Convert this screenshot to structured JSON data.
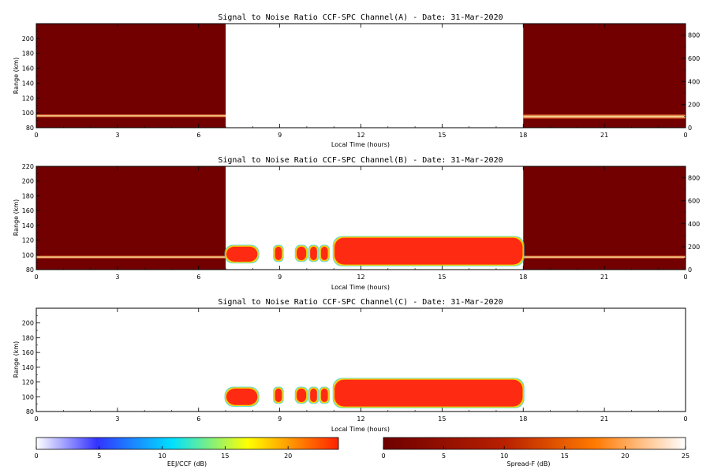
{
  "chart_data": [
    {
      "type": "heatmap",
      "title": "Signal to Noise Ratio CCF-SPC Channel(A) - Date: 31-Mar-2020",
      "xlabel": "Local Time (hours)",
      "ylabel": "Range (km)",
      "xlim": [
        0,
        24
      ],
      "ylim": [
        80,
        220
      ],
      "x_ticks": [
        "0",
        "3",
        "6",
        "9",
        "12",
        "15",
        "18",
        "21",
        "0"
      ],
      "y_ticks": [
        "80",
        "100",
        "120",
        "140",
        "160",
        "180",
        "200"
      ],
      "right_axis": {
        "ylim": [
          0,
          900
        ],
        "ticks": [
          "0",
          "200",
          "400",
          "600",
          "800"
        ]
      },
      "night_blocks": [
        {
          "x": [
            0,
            7
          ]
        },
        {
          "x": [
            18,
            24
          ]
        }
      ],
      "layers": [
        {
          "x": [
            0,
            7
          ],
          "range_km": [
            94,
            98
          ],
          "level": "bright"
        },
        {
          "x": [
            18,
            24
          ],
          "range_km": [
            92,
            98
          ],
          "level": "bright"
        }
      ],
      "echo_blocks": []
    },
    {
      "type": "heatmap",
      "title": "Signal to Noise Ratio CCF-SPC Channel(B) - Date: 31-Mar-2020",
      "xlabel": "Local Time (hours)",
      "ylabel": "Range (km)",
      "xlim": [
        0,
        24
      ],
      "ylim": [
        80,
        220
      ],
      "x_ticks": [
        "0",
        "3",
        "6",
        "9",
        "12",
        "15",
        "18",
        "21",
        "0"
      ],
      "y_ticks": [
        "80",
        "100",
        "120",
        "140",
        "160",
        "180",
        "200",
        "220"
      ],
      "right_axis": {
        "ylim": [
          0,
          900
        ],
        "ticks": [
          "0",
          "200",
          "400",
          "600",
          "800"
        ]
      },
      "night_blocks": [
        {
          "x": [
            0,
            7
          ]
        },
        {
          "x": [
            18,
            24
          ]
        }
      ],
      "layers": [
        {
          "x": [
            0,
            7
          ],
          "range_km": [
            95,
            99
          ],
          "level": "bright"
        },
        {
          "x": [
            18,
            24
          ],
          "range_km": [
            95,
            99
          ],
          "level": "bright"
        }
      ],
      "echo_blocks": [
        {
          "x": [
            7.0,
            8.2
          ],
          "range_km": [
            90,
            112
          ]
        },
        {
          "x": [
            8.8,
            9.1
          ],
          "range_km": [
            92,
            112
          ]
        },
        {
          "x": [
            9.6,
            10.0
          ],
          "range_km": [
            92,
            112
          ]
        },
        {
          "x": [
            10.1,
            10.4
          ],
          "range_km": [
            92,
            112
          ]
        },
        {
          "x": [
            10.5,
            10.8
          ],
          "range_km": [
            92,
            112
          ]
        },
        {
          "x": [
            11.0,
            18.0
          ],
          "range_km": [
            86,
            124
          ]
        }
      ]
    },
    {
      "type": "heatmap",
      "title": "Signal to Noise Ratio CCF-SPC Channel(C) - Date: 31-Mar-2020",
      "xlabel": "Local Time (hours)",
      "ylabel": "Range (km)",
      "xlim": [
        0,
        24
      ],
      "ylim": [
        80,
        220
      ],
      "x_ticks": [
        "0",
        "3",
        "6",
        "9",
        "12",
        "15",
        "18",
        "21",
        "0"
      ],
      "y_ticks": [
        "80",
        "100",
        "120",
        "140",
        "160",
        "180",
        "200"
      ],
      "night_blocks": [],
      "layers": [],
      "echo_blocks": [
        {
          "x": [
            7.0,
            8.2
          ],
          "range_km": [
            88,
            112
          ]
        },
        {
          "x": [
            8.8,
            9.1
          ],
          "range_km": [
            92,
            112
          ]
        },
        {
          "x": [
            9.6,
            10.0
          ],
          "range_km": [
            92,
            112
          ]
        },
        {
          "x": [
            10.1,
            10.4
          ],
          "range_km": [
            92,
            112
          ]
        },
        {
          "x": [
            10.5,
            10.8
          ],
          "range_km": [
            92,
            112
          ]
        },
        {
          "x": [
            11.0,
            18.0
          ],
          "range_km": [
            86,
            124
          ]
        }
      ]
    }
  ],
  "colorbars": [
    {
      "label": "EEJ/CCF (dB)",
      "range": [
        0,
        24
      ],
      "ticks": [
        "0",
        "5",
        "10",
        "15",
        "20"
      ],
      "tick_values": [
        0,
        5,
        10,
        15,
        20
      ],
      "colors": [
        "#ffffff",
        "#2222ff",
        "#00e0ff",
        "#ffff00",
        "#ff2200"
      ]
    },
    {
      "label": "Spread-F (dB)",
      "range": [
        0,
        25
      ],
      "ticks": [
        "0",
        "5",
        "10",
        "15",
        "20",
        "25"
      ],
      "tick_values": [
        0,
        5,
        10,
        15,
        20,
        25
      ],
      "colors": [
        "#6e0000",
        "#b82000",
        "#ff7a00",
        "#ffffff"
      ]
    }
  ]
}
